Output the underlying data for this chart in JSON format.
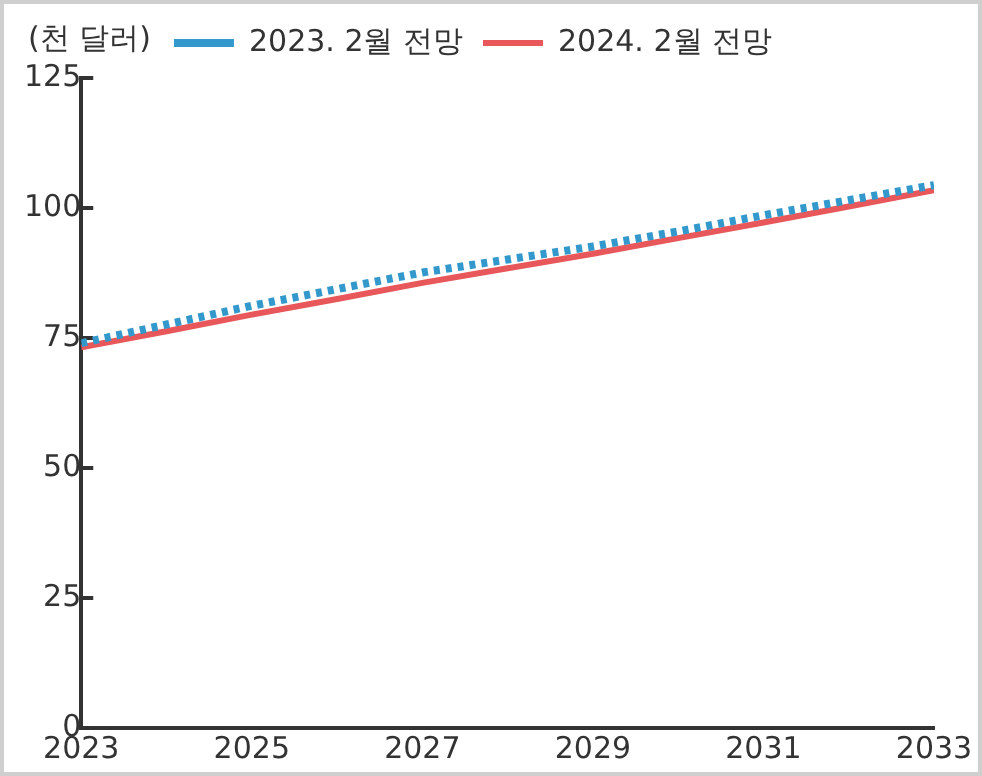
{
  "chart_data": {
    "type": "line",
    "ylabel": "(천 달러)",
    "x": [
      2023,
      2024,
      2025,
      2026,
      2027,
      2028,
      2029,
      2030,
      2031,
      2032,
      2033
    ],
    "series": [
      {
        "name": "2023. 2월 전망",
        "color": "#3399cc",
        "line_style": "dotted",
        "values": [
          74.0,
          77.6,
          81.2,
          84.4,
          87.6,
          90.1,
          92.6,
          95.5,
          98.6,
          101.5,
          104.4
        ]
      },
      {
        "name": "2024. 2월 전망",
        "color": "#e8575a",
        "line_style": "solid",
        "values": [
          73.2,
          76.3,
          79.5,
          82.5,
          85.6,
          88.4,
          91.2,
          94.2,
          97.2,
          100.3,
          103.4
        ]
      }
    ],
    "xlim": [
      2023,
      2033
    ],
    "xticks": [
      2023,
      2025,
      2027,
      2029,
      2031,
      2033
    ],
    "ylim": [
      0,
      125
    ],
    "yticks": [
      0,
      25,
      50,
      75,
      100,
      125
    ],
    "grid": false,
    "legend": "top",
    "marker": "none"
  }
}
